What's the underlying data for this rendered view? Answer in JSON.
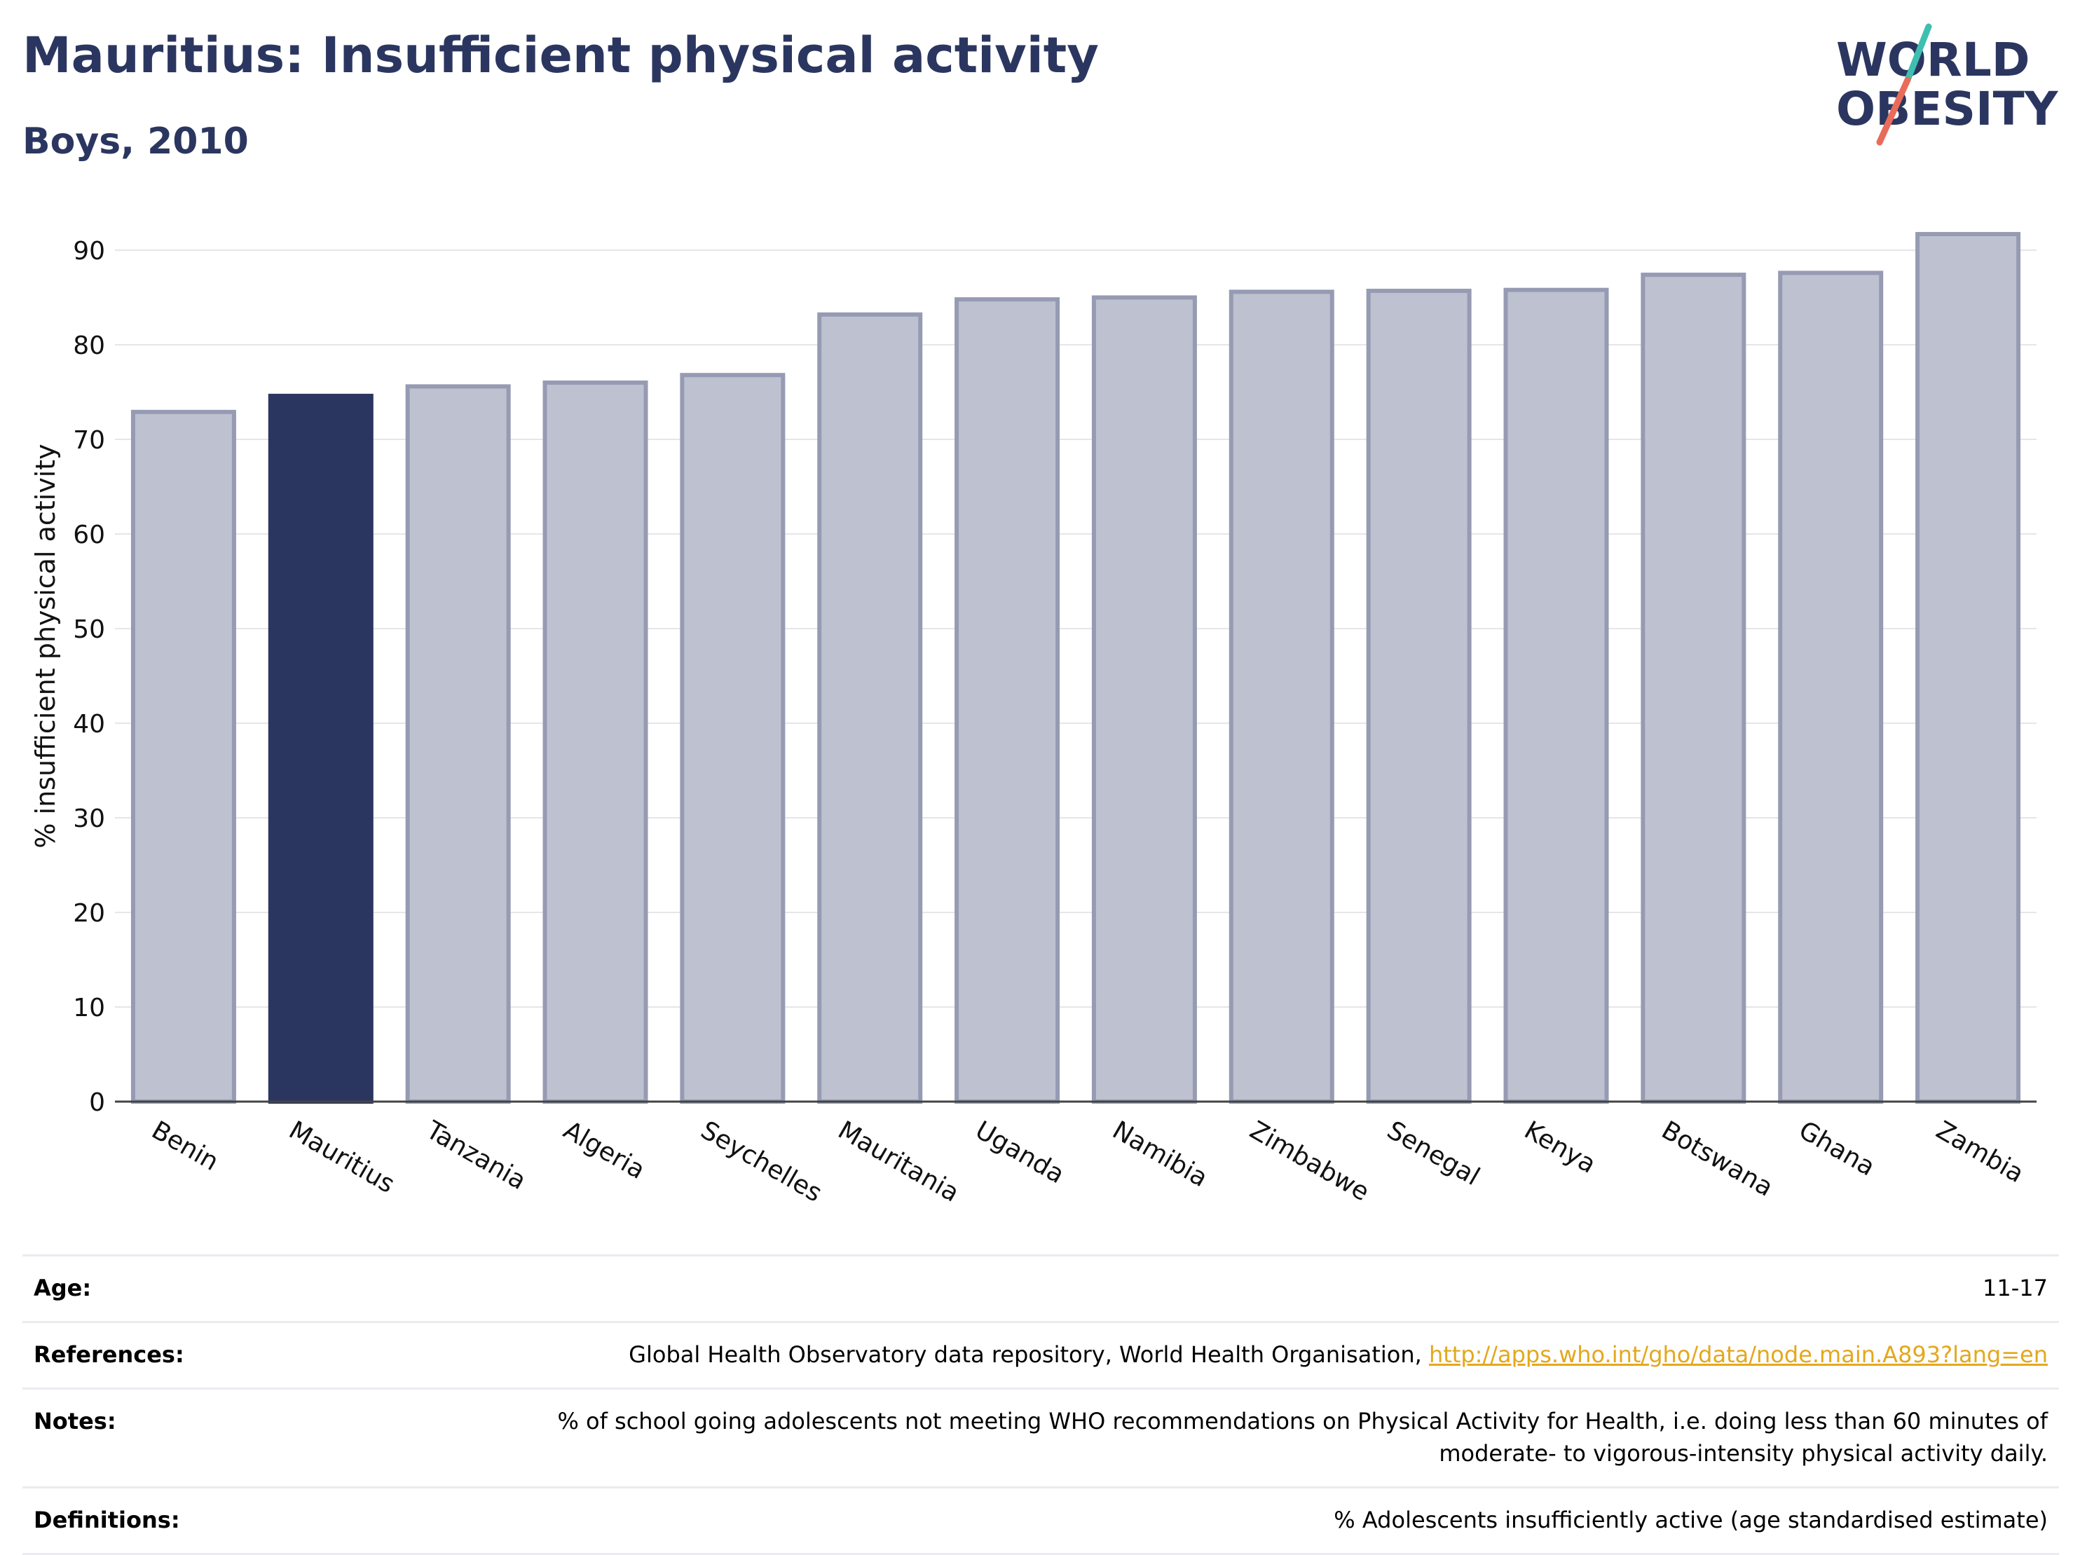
{
  "header": {
    "title": "Mauritius: Insufficient physical activity",
    "subtitle": "Boys, 2010",
    "logo_line1": "WORLD",
    "logo_line2": "OBESITY"
  },
  "colors": {
    "highlight": "#2b3660",
    "bar": "#bec1cf",
    "bar_border": "#969bb3",
    "accent_teal": "#3fbfb0",
    "accent_coral": "#e96b5a"
  },
  "chart_data": {
    "type": "bar",
    "title": "Mauritius: Insufficient physical activity",
    "subtitle": "Boys, 2010",
    "xlabel": "",
    "ylabel": "% insufficient physical activity",
    "ylim": [
      0,
      93
    ],
    "yticks": [
      0,
      10,
      20,
      30,
      40,
      50,
      60,
      70,
      80,
      90
    ],
    "grid": true,
    "highlight": "Mauritius",
    "categories": [
      "Benin",
      "Mauritius",
      "Tanzania",
      "Algeria",
      "Seychelles",
      "Mauritania",
      "Uganda",
      "Namibia",
      "Zimbabwe",
      "Senegal",
      "Kenya",
      "Botswana",
      "Ghana",
      "Zambia"
    ],
    "values": [
      72.9,
      74.6,
      75.6,
      76.0,
      76.8,
      83.2,
      84.8,
      85.0,
      85.6,
      85.7,
      85.8,
      87.4,
      87.6,
      91.7
    ]
  },
  "info": {
    "age_label": "Age:",
    "age_value": "11-17",
    "references_label": "References:",
    "references_text": "Global Health Observatory data repository, World Health Organisation, ",
    "references_link": "http://apps.who.int/gho/data/node.main.A893?lang=en",
    "notes_label": "Notes:",
    "notes_line1": "% of school going adolescents not meeting WHO recommendations on Physical Activity for Health, i.e. doing less than 60 minutes of",
    "notes_line2": "moderate- to vigorous-intensity physical activity daily.",
    "definitions_label": "Definitions:",
    "definitions_value": "% Adolescents insufficiently active (age standardised estimate)"
  }
}
